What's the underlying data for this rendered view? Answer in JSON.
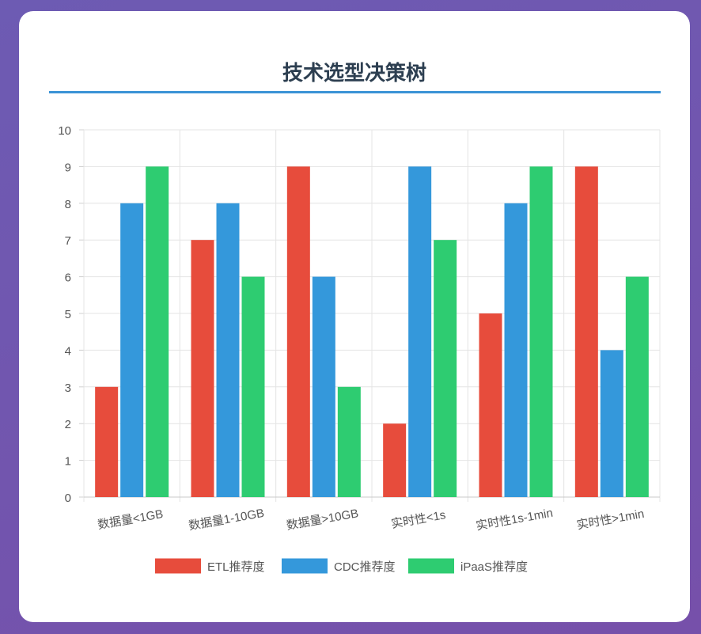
{
  "page": {
    "title": "技术选型决策树"
  },
  "colors": {
    "ETL": "#e74c3c",
    "CDC": "#3498db",
    "iPaaS": "#2ecc71",
    "title": "#2c3e50",
    "rule": "#3a93d6"
  },
  "chart_data": {
    "type": "bar",
    "title": "",
    "xlabel": "",
    "ylabel": "",
    "ylim": [
      0,
      10
    ],
    "yticks": [
      "0",
      "1",
      "2",
      "3",
      "4",
      "5",
      "6",
      "7",
      "8",
      "9",
      "10"
    ],
    "categories": [
      "数据量<1GB",
      "数据量1-10GB",
      "数据量>10GB",
      "实时性<1s",
      "实时性1s-1min",
      "实时性>1min"
    ],
    "series": [
      {
        "name": "ETL推荐度",
        "color": "#e74c3c",
        "values": [
          3,
          7,
          9,
          2,
          5,
          9
        ]
      },
      {
        "name": "CDC推荐度",
        "color": "#3498db",
        "values": [
          8,
          8,
          6,
          9,
          8,
          4
        ]
      },
      {
        "name": "iPaaS推荐度",
        "color": "#2ecc71",
        "values": [
          9,
          6,
          3,
          7,
          9,
          6
        ]
      }
    ],
    "grid": true,
    "legend": "bottom"
  }
}
